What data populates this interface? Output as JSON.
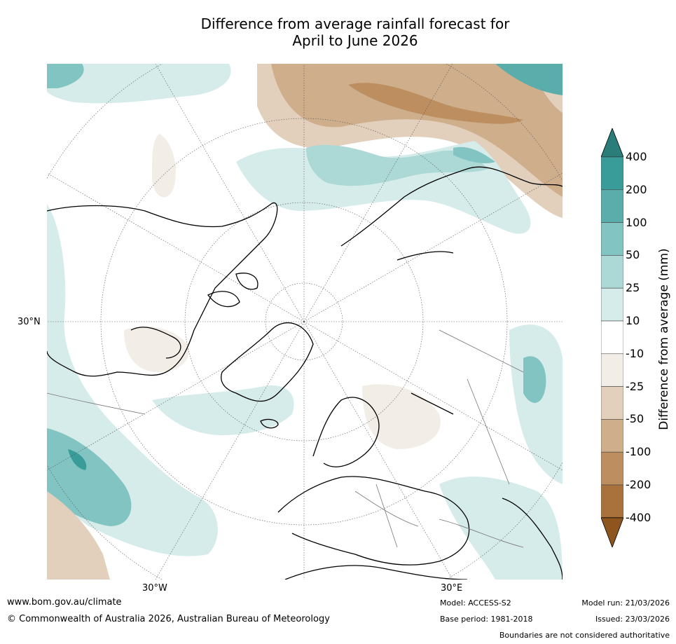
{
  "title": {
    "line1": "Difference from average rainfall forecast for",
    "line2": "April to June 2026"
  },
  "map": {
    "projection": "north-polar-stereographic",
    "lon_labels": [
      "30°W",
      "30°E"
    ],
    "lat_labels": [
      "30°N"
    ]
  },
  "colorbar": {
    "title": "Difference from average (mm)",
    "ticks": [
      "400",
      "200",
      "100",
      "50",
      "25",
      "10",
      "-10",
      "-25",
      "-50",
      "-100",
      "-200",
      "-400"
    ],
    "colors": [
      "#2a7d78",
      "#3a9c98",
      "#5aadaa",
      "#82c4c1",
      "#acd8d6",
      "#d6ecea",
      "#ffffff",
      "#f2ede6",
      "#e2d0bd",
      "#cfae8c",
      "#bd8f60",
      "#a9723d",
      "#8e561e"
    ]
  },
  "footer": {
    "website": "www.bom.gov.au/climate",
    "copyright": "© Commonwealth of Australia 2026, Australian Bureau of Meteorology",
    "model": "Model: ACCESS-S2",
    "base_period": "Base period: 1981-2018",
    "model_run": "Model run: 21/03/2026",
    "issued": "Issued: 23/03/2026",
    "disclaimer": "Boundaries are not considered authoritative"
  }
}
